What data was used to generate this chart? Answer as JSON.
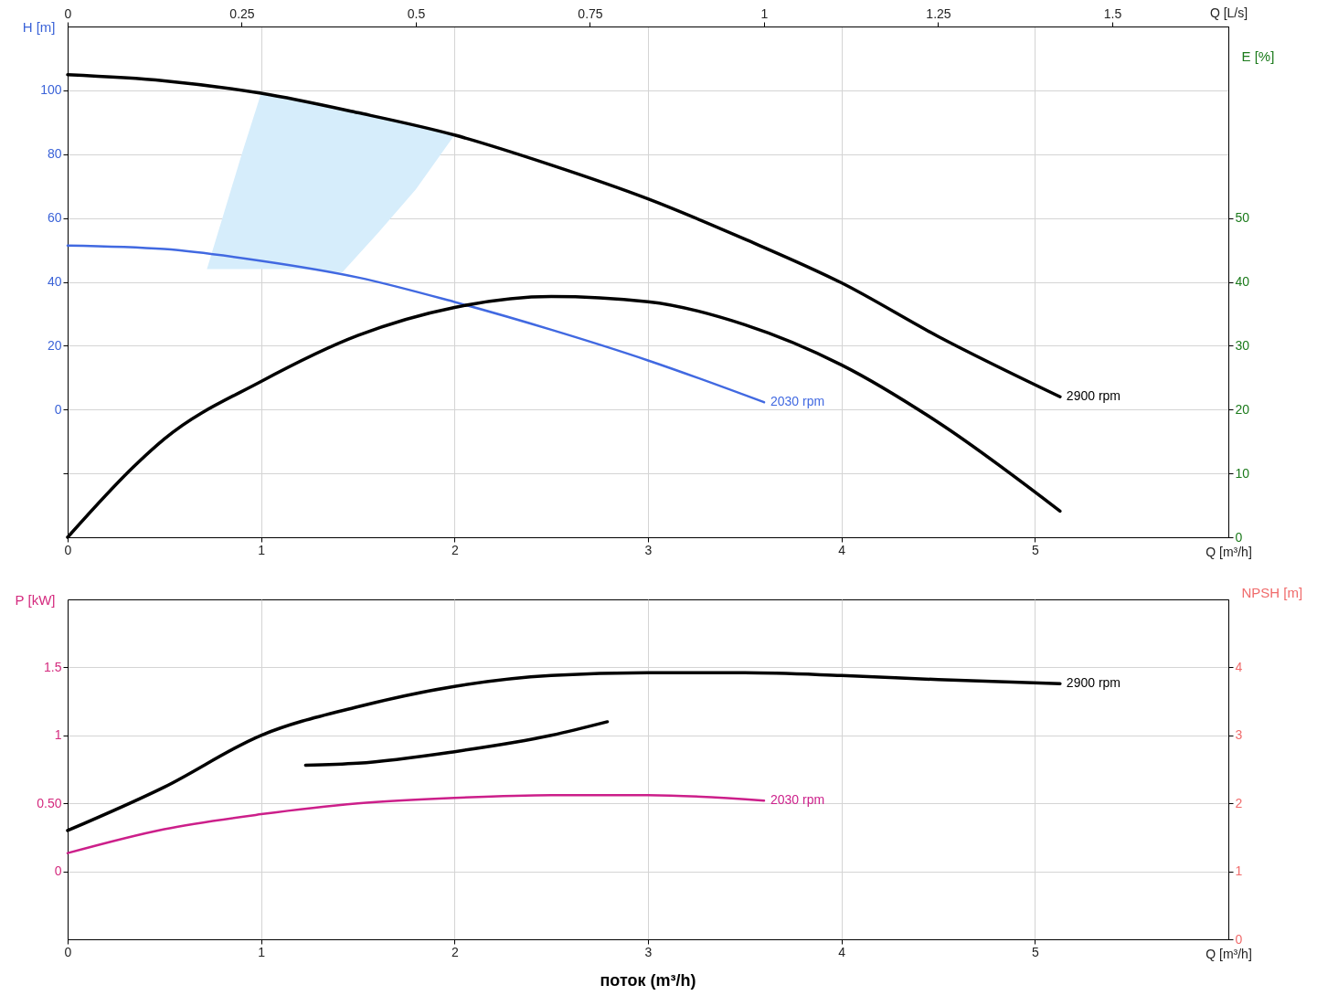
{
  "chart_data": [
    {
      "type": "line",
      "xlim": [
        0,
        6
      ],
      "xticks": [
        0,
        1,
        2,
        3,
        4,
        5
      ],
      "xlabel": "Q [m³/h]",
      "x2lim": [
        0,
        1.6667
      ],
      "x2ticks": [
        0,
        0.25,
        0.5,
        0.75,
        1,
        1.25,
        1.5
      ],
      "x2label": "Q [L/s]",
      "ylim": [
        -40,
        120
      ],
      "yticks": [
        {
          "value": -20,
          "label": null
        },
        0,
        20,
        40,
        60,
        80,
        100
      ],
      "ylabel": "H [m]",
      "y2lim": [
        0,
        80
      ],
      "y2ticks": [
        0,
        10,
        20,
        30,
        40,
        50
      ],
      "y2label": "E [%]",
      "grid": true,
      "series": [
        {
          "type": "area",
          "color": "#d6edfb",
          "x": [
            0.72,
            0.8,
            0.9,
            1,
            1.2,
            1.42,
            1.6,
            1.8,
            2
          ],
          "values": [
            null,
            null,
            null,
            null,
            null,
            null,
            null,
            null,
            null
          ],
          "lower": [
            44,
            44,
            44,
            44,
            44,
            43,
            55,
            69,
            86
          ],
          "upper": [
            44,
            60,
            80,
            99,
            96.5,
            94,
            91.6,
            89,
            86
          ]
        },
        {
          "name": "2900 rpm",
          "color": "#000000",
          "x": [
            0,
            0.5,
            1,
            1.5,
            2,
            2.5,
            3,
            3.5,
            4,
            4.5,
            5.13
          ],
          "values": [
            104.9,
            103,
            99.1,
            93,
            86,
            76.6,
            66,
            53.4,
            39.7,
            22.9,
            4
          ]
        },
        {
          "name": "2030 rpm",
          "color": "#4169e1",
          "x": [
            0,
            0.5,
            1,
            1.5,
            2,
            2.5,
            3,
            3.6
          ],
          "values": [
            51.4,
            50.3,
            46.6,
            41.4,
            33.7,
            25,
            15.4,
            2.3
          ]
        },
        {
          "axis": "y2",
          "color": "#000000",
          "x": [
            0,
            0.36,
            0.5,
            1,
            1.5,
            2,
            2.5,
            3,
            3.5,
            4,
            4.5,
            5.13
          ],
          "values": [
            0,
            11.6,
            15.4,
            24.4,
            31.6,
            36,
            37.7,
            36.9,
            33.3,
            27,
            18,
            4.1
          ]
        }
      ]
    },
    {
      "type": "line",
      "xlim": [
        0,
        6
      ],
      "xticks": [
        0,
        1,
        2,
        3,
        4,
        5
      ],
      "xlabel": "Q [m³/h]",
      "ylim": [
        -0.5,
        2
      ],
      "yticks": [
        0,
        {
          "value": 0.5,
          "label": "0.50"
        },
        1,
        1.5
      ],
      "ylabel": "P [kW]",
      "y2lim": [
        0,
        5
      ],
      "y2ticks": [
        0,
        1,
        2,
        3,
        4
      ],
      "y2label": "NPSH [m]",
      "grid": true,
      "annotations": [
        "поток (m³/h)"
      ],
      "series": [
        {
          "name": "2900 rpm",
          "color": "#000000",
          "x": [
            0,
            0.5,
            1,
            1.5,
            2,
            2.5,
            3,
            3.5,
            4,
            4.5,
            5.13
          ],
          "values": [
            0.3,
            0.62,
            1,
            1.21,
            1.36,
            1.44,
            1.46,
            1.46,
            1.44,
            1.41,
            1.38
          ]
        },
        {
          "name": "2030 rpm",
          "color": "#cc1f8a",
          "x": [
            0,
            0.5,
            1,
            1.5,
            2,
            2.5,
            3,
            3.6
          ],
          "values": [
            0.134,
            0.31,
            0.42,
            0.5,
            0.54,
            0.56,
            0.56,
            0.52
          ]
        },
        {
          "axis": "y2",
          "color": "#000000",
          "x": [
            1.23,
            1.5,
            2,
            2.5,
            2.79
          ],
          "values": [
            2.56,
            2.59,
            2.76,
            3,
            3.2
          ]
        }
      ]
    }
  ]
}
